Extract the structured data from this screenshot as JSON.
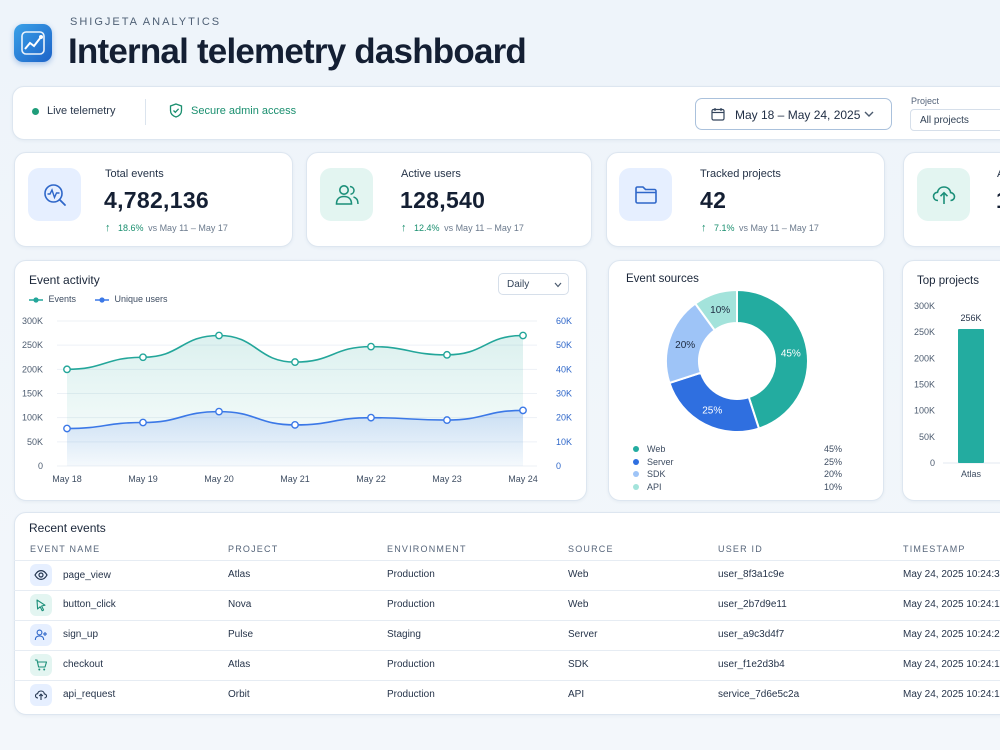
{
  "header": {
    "brand": "SHIGJETA ANALYTICS",
    "title": "Internal telemetry dashboard"
  },
  "status": {
    "live": "Live telemetry",
    "secure": "Secure admin access",
    "date_range": "May 18 – May 24, 2025",
    "project_label": "Project",
    "project_value": "All projects"
  },
  "kpis": [
    {
      "label": "Total events",
      "value": "4,782,136",
      "delta": "18.6%",
      "compare": "vs May 11 – May 17",
      "icon": "activity-search-icon"
    },
    {
      "label": "Active users",
      "value": "128,540",
      "delta": "12.4%",
      "compare": "vs May 11 – May 17",
      "icon": "users-icon"
    },
    {
      "label": "Tracked projects",
      "value": "42",
      "delta": "7.1%",
      "compare": "vs May 11 – May 17",
      "icon": "folder-icon"
    },
    {
      "label": "A",
      "value": "1",
      "icon": "cloud-upload-icon"
    }
  ],
  "activity": {
    "title": "Event activity",
    "granularity": "Daily",
    "legend_events": "Events",
    "legend_users": "Unique users"
  },
  "sources": {
    "title": "Event sources",
    "items": [
      {
        "name": "Web",
        "pct": "45%"
      },
      {
        "name": "Server",
        "pct": "25%"
      },
      {
        "name": "SDK",
        "pct": "20%"
      },
      {
        "name": "API",
        "pct": "10%"
      }
    ]
  },
  "top_projects": {
    "title": "Top projects"
  },
  "chart_data": [
    {
      "type": "line",
      "title": "Event activity",
      "x": [
        "May 18",
        "May 19",
        "May 20",
        "May 21",
        "May 22",
        "May 23",
        "May 24"
      ],
      "series": [
        {
          "name": "Events",
          "axis": "left",
          "values": [
            200000,
            225000,
            270000,
            215000,
            247000,
            230000,
            270000
          ]
        },
        {
          "name": "Unique users",
          "axis": "right",
          "values": [
            15500,
            18000,
            22500,
            17000,
            20000,
            19000,
            23000
          ]
        }
      ],
      "ylim": [
        0,
        300000
      ],
      "y_ticks": [
        "0",
        "50K",
        "100K",
        "150K",
        "200K",
        "250K",
        "300K"
      ],
      "y2lim": [
        0,
        60000
      ],
      "y2_ticks": [
        "0",
        "10K",
        "20K",
        "30K",
        "40K",
        "50K",
        "60K"
      ],
      "grid": true,
      "legend": "top-left",
      "colors": {
        "Events": "#23a69a",
        "Unique users": "#3b78e7"
      }
    },
    {
      "type": "pie",
      "title": "Event sources",
      "categories": [
        "Web",
        "Server",
        "SDK",
        "API"
      ],
      "values": [
        45,
        25,
        20,
        10
      ],
      "labels": [
        "45%",
        "25%",
        "20%",
        "10%"
      ],
      "colors": [
        "#23aca0",
        "#2f6fe0",
        "#9ec4f7",
        "#a3e3db"
      ],
      "legend": "bottom"
    },
    {
      "type": "bar",
      "title": "Top projects",
      "categories": [
        "Atlas"
      ],
      "values": [
        256000
      ],
      "labels": [
        "256K"
      ],
      "ylim": [
        0,
        300000
      ],
      "y_ticks": [
        "0",
        "50K",
        "100K",
        "150K",
        "200K",
        "250K",
        "300K"
      ],
      "color": "#23aca0"
    }
  ],
  "recent": {
    "title": "Recent events",
    "columns": [
      "EVENT NAME",
      "PROJECT",
      "ENVIRONMENT",
      "SOURCE",
      "USER ID",
      "TIMESTAMP"
    ],
    "rows": [
      {
        "event": "page_view",
        "icon": "eye-icon",
        "project": "Atlas",
        "env": "Production",
        "source": "Web",
        "user": "user_8f3a1c9e",
        "ts": "May 24, 2025 10:24:3"
      },
      {
        "event": "button_click",
        "icon": "cursor-click-icon",
        "project": "Nova",
        "env": "Production",
        "source": "Web",
        "user": "user_2b7d9e11",
        "ts": "May 24, 2025 10:24:1"
      },
      {
        "event": "sign_up",
        "icon": "user-plus-icon",
        "project": "Pulse",
        "env": "Staging",
        "source": "Server",
        "user": "user_a9c3d4f7",
        "ts": "May 24, 2025 10:24:2"
      },
      {
        "event": "checkout",
        "icon": "cart-icon",
        "project": "Atlas",
        "env": "Production",
        "source": "SDK",
        "user": "user_f1e2d3b4",
        "ts": "May 24, 2025 10:24:1"
      },
      {
        "event": "api_request",
        "icon": "cloud-upload-icon",
        "project": "Orbit",
        "env": "Production",
        "source": "API",
        "user": "service_7d6e5c2a",
        "ts": "May 24, 2025 10:24:1"
      }
    ]
  }
}
